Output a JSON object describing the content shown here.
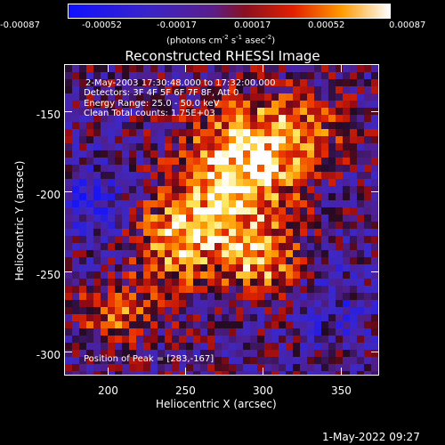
{
  "colorbar": {
    "ticks": [
      "-0.00087",
      "-0.00052",
      "-0.00017",
      "0.00017",
      "0.00052",
      "0.00087"
    ],
    "unit_main": "(photons cm",
    "unit_exp1": "-2",
    "unit_s": " s",
    "unit_exp2": "-1",
    "unit_asec": " asec",
    "unit_exp3": "-2",
    "unit_end": ")"
  },
  "title": "Reconstructed RHESSI Image",
  "info": {
    "time": "2-May-2003 17:30:48.000 to 17:32:00.000",
    "detectors": "Detectors: 3F 4F 5F 6F 7F 8F, Att 0",
    "energy": "Energy Range: 25.0 - 50.0 keV",
    "clean": "Clean      Total counts: 1.75E+03",
    "peak": "Position of Peak = [283,-167]"
  },
  "axes": {
    "xlabel": "Heliocentric X (arcsec)",
    "ylabel": "Heliocentric Y (arcsec)",
    "xticks": [
      "200",
      "250",
      "300",
      "350"
    ],
    "yticks": [
      "-150",
      "-200",
      "-250",
      "-300"
    ]
  },
  "timestamp": "1-May-2022 09:27",
  "chart_data": {
    "type": "heatmap",
    "title": "Reconstructed RHESSI Image",
    "xlabel": "Heliocentric X (arcsec)",
    "ylabel": "Heliocentric Y (arcsec)",
    "xlim": [
      175,
      370
    ],
    "ylim": [
      -313,
      -120
    ],
    "zlim": [
      -0.00087,
      0.00087
    ],
    "colormap": "blue-purple-red-yellow-white",
    "peak": [
      283,
      -167
    ]
  }
}
